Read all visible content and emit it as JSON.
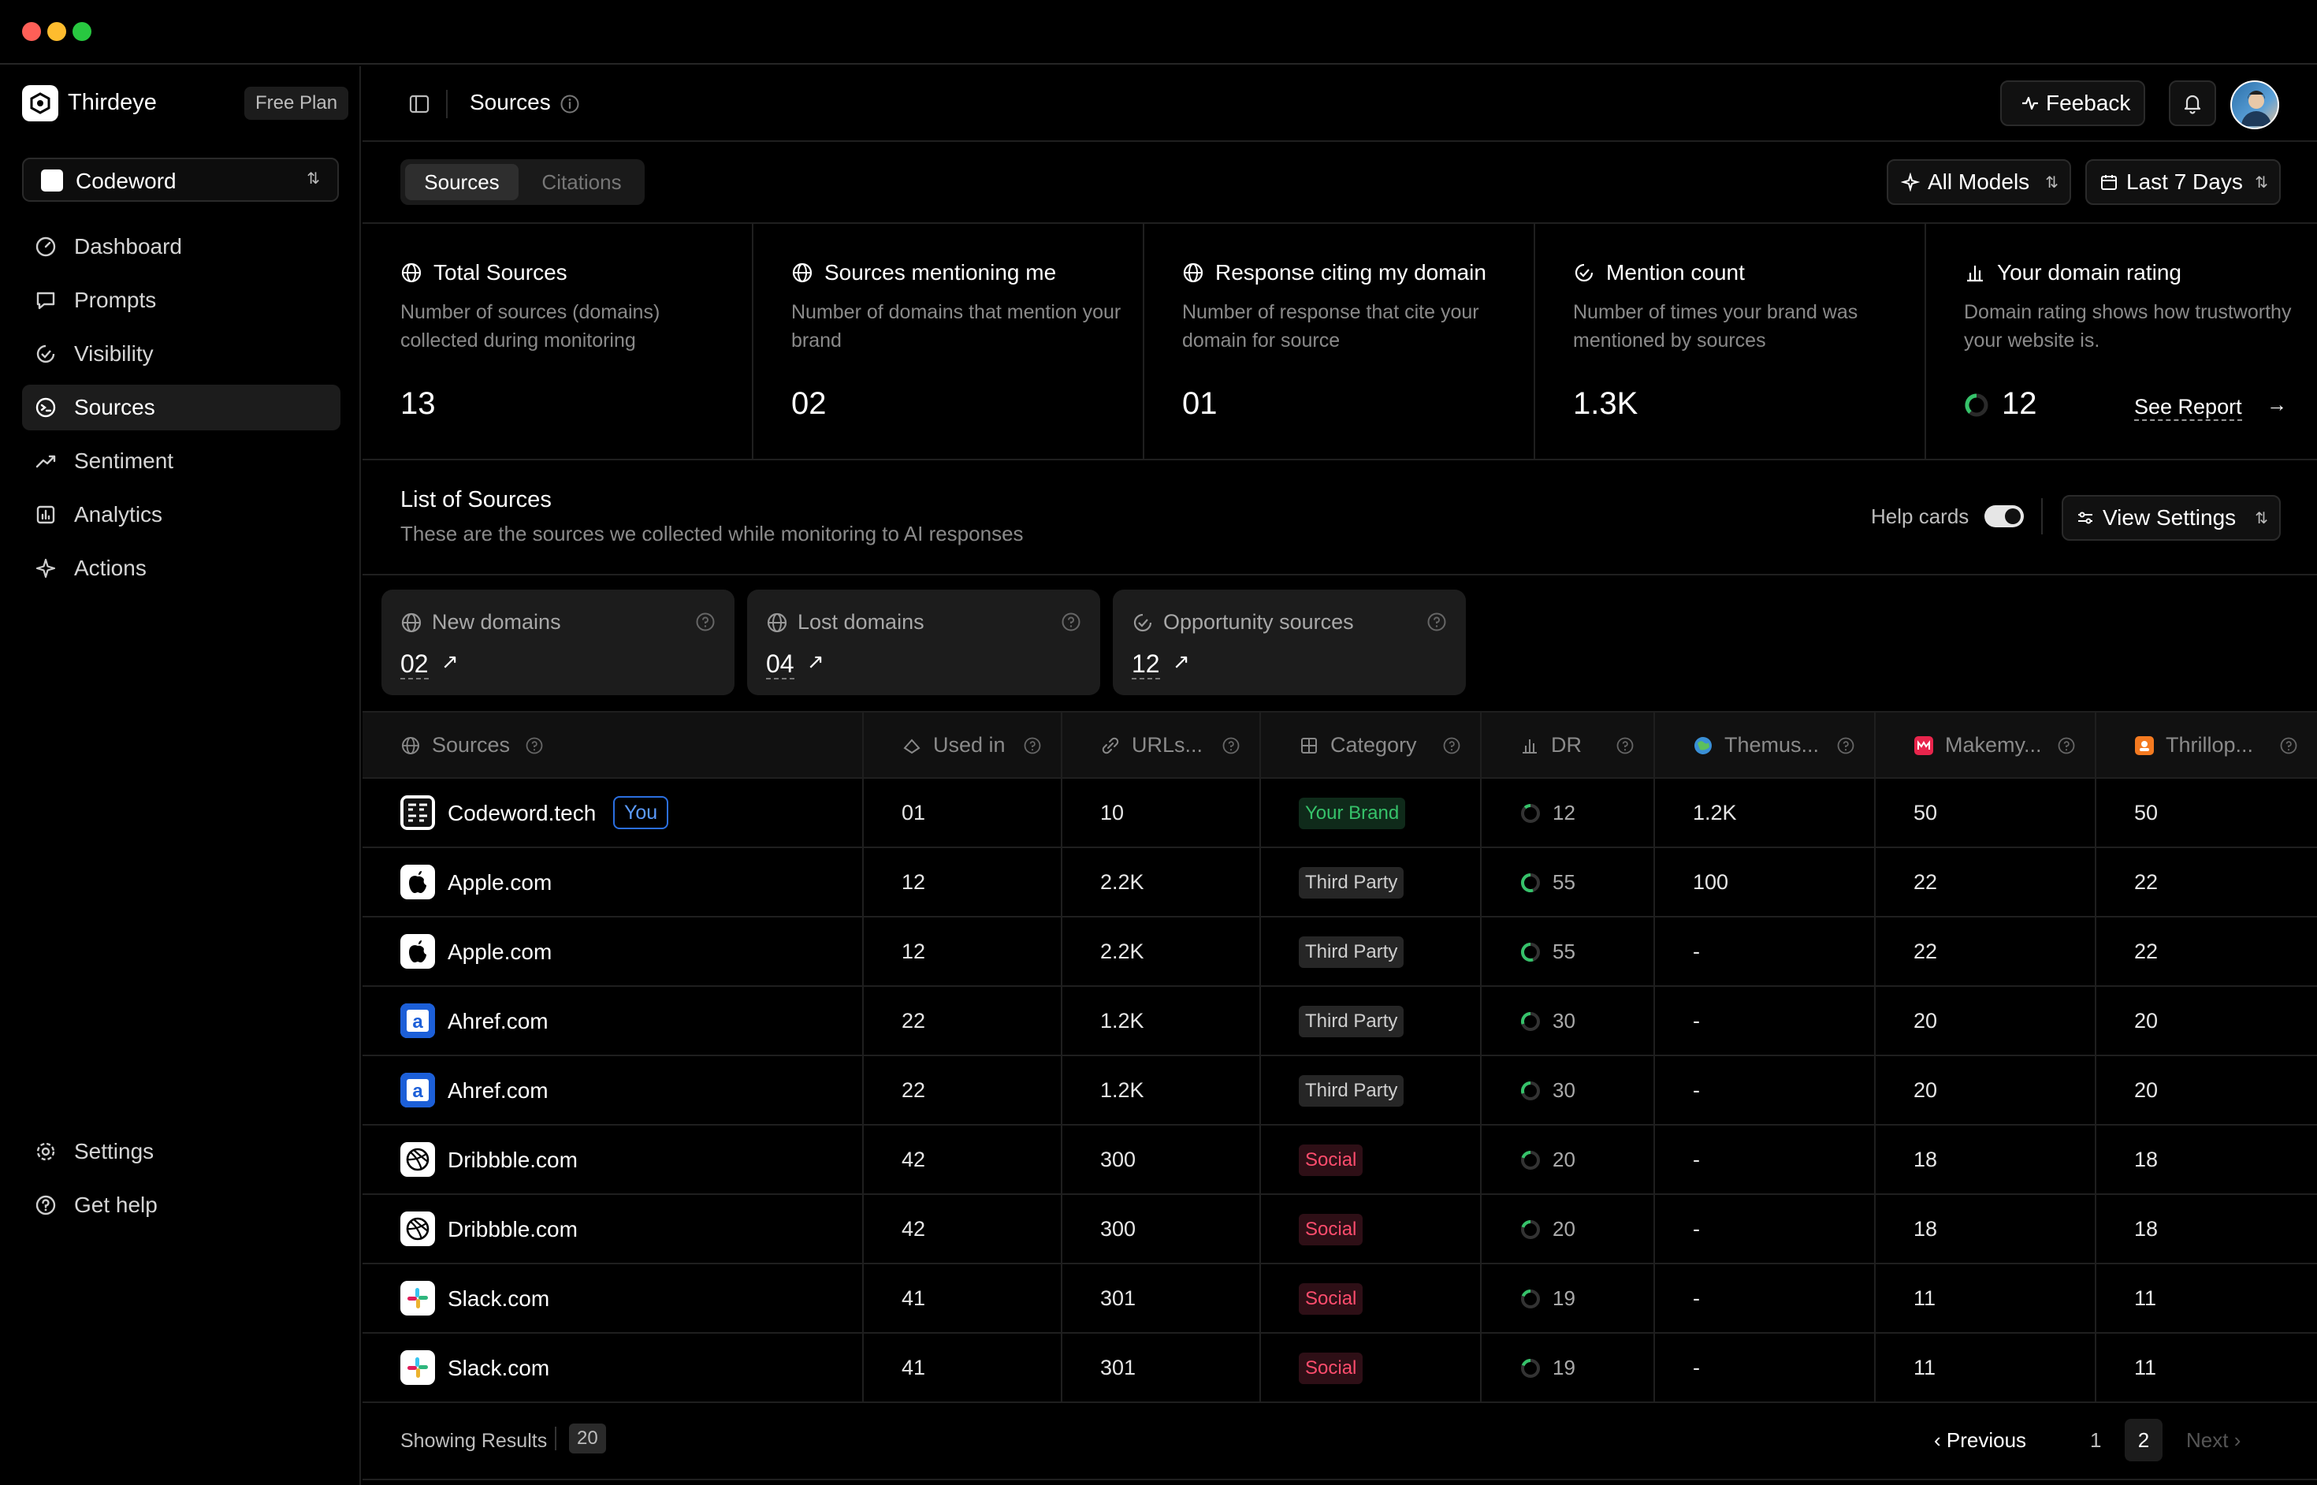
{
  "window": {
    "controls": [
      "close",
      "minimize",
      "maximize"
    ]
  },
  "app": {
    "name": "Thirdeye",
    "plan": "Free Plan"
  },
  "workspace": {
    "name": "Codeword"
  },
  "sidebar": {
    "items": [
      {
        "label": "Dashboard",
        "icon": "dashboard-icon"
      },
      {
        "label": "Prompts",
        "icon": "chat-icon"
      },
      {
        "label": "Visibility",
        "icon": "visibility-icon"
      },
      {
        "label": "Sources",
        "icon": "sources-icon",
        "active": true
      },
      {
        "label": "Sentiment",
        "icon": "trend-icon"
      },
      {
        "label": "Analytics",
        "icon": "analytics-icon"
      },
      {
        "label": "Actions",
        "icon": "sparkle-icon"
      }
    ],
    "bottom": [
      {
        "label": "Settings",
        "icon": "gear-icon"
      },
      {
        "label": "Get help",
        "icon": "help-icon"
      }
    ]
  },
  "header": {
    "title": "Sources",
    "feedback_label": "Feeback"
  },
  "tabs": [
    {
      "label": "Sources",
      "active": true
    },
    {
      "label": "Citations"
    }
  ],
  "filters": {
    "models": "All Models",
    "range": "Last 7 Days"
  },
  "metrics": [
    {
      "title": "Total Sources",
      "desc": "Number of sources (domains) collected during monitoring",
      "value": "13"
    },
    {
      "title": "Sources mentioning me",
      "desc": "Number of domains that mention your brand",
      "value": "02"
    },
    {
      "title": "Response citing my domain",
      "desc": "Number of response that cite your domain for source",
      "value": "01"
    },
    {
      "title": "Mention count",
      "desc": "Number of times your brand was mentioned by sources",
      "value": "1.3K"
    },
    {
      "title": "Your domain rating",
      "desc": "Domain rating shows how trustworthy your website is.",
      "value": "12",
      "link": "See Report"
    }
  ],
  "list": {
    "title": "List of Sources",
    "subtitle": "These are the sources we collected while monitoring to AI responses",
    "help_cards_label": "Help cards",
    "help_cards_on": true,
    "view_settings_label": "View Settings"
  },
  "help_cards": [
    {
      "label": "New domains",
      "value": "02"
    },
    {
      "label": "Lost domains",
      "value": "04"
    },
    {
      "label": "Opportunity sources",
      "value": "12"
    }
  ],
  "table": {
    "columns": [
      "Sources",
      "Used in",
      "URLs...",
      "Category",
      "DR",
      "Themus...",
      "Makemy...",
      "Thrillop..."
    ],
    "rows": [
      {
        "source": "Codeword.tech",
        "you": "You",
        "icon": "codeword-logo-icon",
        "used_in": "01",
        "urls": "10",
        "category": "Your Brand",
        "cat_type": "brand",
        "dr": "12",
        "themus": "1.2K",
        "makemy": "50",
        "thrillop": "50"
      },
      {
        "source": "Apple.com",
        "icon": "apple-logo-icon",
        "used_in": "12",
        "urls": "2.2K",
        "category": "Third Party",
        "cat_type": "third",
        "dr": "55",
        "themus": "100",
        "makemy": "22",
        "thrillop": "22"
      },
      {
        "source": "Apple.com",
        "icon": "apple-logo-icon",
        "used_in": "12",
        "urls": "2.2K",
        "category": "Third Party",
        "cat_type": "third",
        "dr": "55",
        "themus": "-",
        "makemy": "22",
        "thrillop": "22"
      },
      {
        "source": "Ahref.com",
        "icon": "ahrefs-logo-icon",
        "used_in": "22",
        "urls": "1.2K",
        "category": "Third Party",
        "cat_type": "third",
        "dr": "30",
        "themus": "-",
        "makemy": "20",
        "thrillop": "20"
      },
      {
        "source": "Ahref.com",
        "icon": "ahrefs-logo-icon",
        "used_in": "22",
        "urls": "1.2K",
        "category": "Third Party",
        "cat_type": "third",
        "dr": "30",
        "themus": "-",
        "makemy": "20",
        "thrillop": "20"
      },
      {
        "source": "Dribbble.com",
        "icon": "dribbble-logo-icon",
        "used_in": "42",
        "urls": "300",
        "category": "Social",
        "cat_type": "social",
        "dr": "20",
        "themus": "-",
        "makemy": "18",
        "thrillop": "18"
      },
      {
        "source": "Dribbble.com",
        "icon": "dribbble-logo-icon",
        "used_in": "42",
        "urls": "300",
        "category": "Social",
        "cat_type": "social",
        "dr": "20",
        "themus": "-",
        "makemy": "18",
        "thrillop": "18"
      },
      {
        "source": "Slack.com",
        "icon": "slack-logo-icon",
        "used_in": "41",
        "urls": "301",
        "category": "Social",
        "cat_type": "social",
        "dr": "19",
        "themus": "-",
        "makemy": "11",
        "thrillop": "11"
      },
      {
        "source": "Slack.com",
        "icon": "slack-logo-icon",
        "used_in": "41",
        "urls": "301",
        "category": "Social",
        "cat_type": "social",
        "dr": "19",
        "themus": "-",
        "makemy": "11",
        "thrillop": "11"
      }
    ]
  },
  "footer": {
    "showing_label": "Showing Results",
    "count": "20",
    "prev_label": "Previous",
    "next_label": "Next",
    "pages": [
      "1",
      "2"
    ],
    "current_page": "2"
  },
  "colors": {
    "accent_green": "#36c26a",
    "social_red": "#ff4d6d",
    "you_blue": "#2b6fe0",
    "traffic_red": "#ff5f57",
    "traffic_yellow": "#febc2e",
    "traffic_green": "#28c840"
  }
}
